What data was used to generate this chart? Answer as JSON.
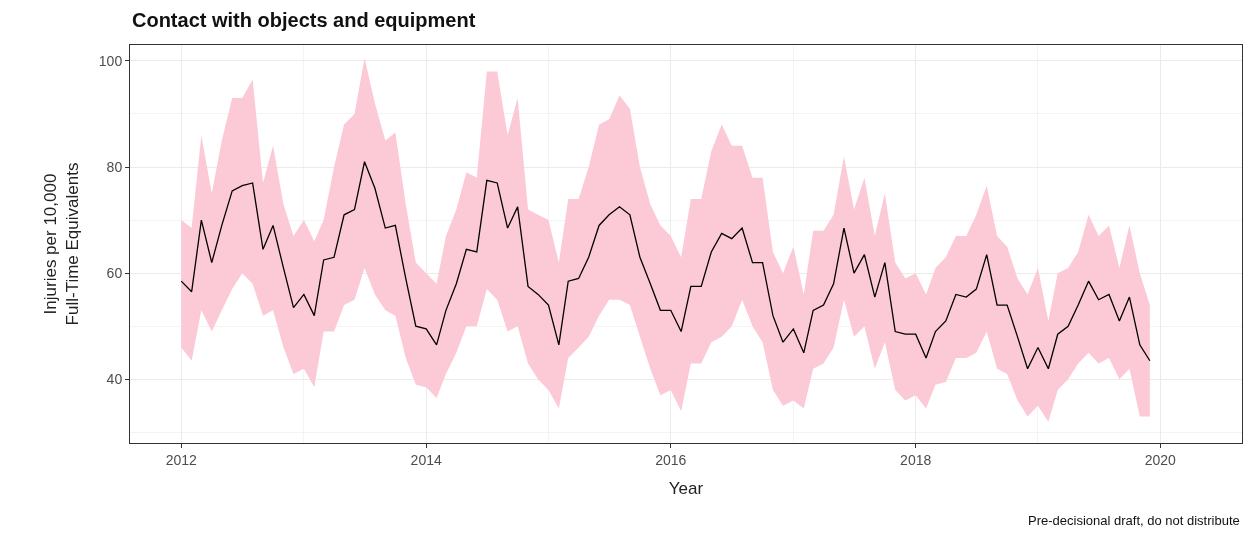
{
  "chart_data": {
    "type": "line",
    "title": "Contact with objects and equipment",
    "xlabel": "Year",
    "ylabel": "Injuries per 10,000\nFull-Time Equivalents",
    "annotations": [
      "Pre-decisional draft, do not distribute"
    ],
    "x": [
      "2012-01",
      "2012-02",
      "2012-03",
      "2012-04",
      "2012-05",
      "2012-06",
      "2012-07",
      "2012-08",
      "2012-09",
      "2012-10",
      "2012-11",
      "2012-12",
      "2013-01",
      "2013-02",
      "2013-03",
      "2013-04",
      "2013-05",
      "2013-06",
      "2013-07",
      "2013-08",
      "2013-09",
      "2013-10",
      "2013-11",
      "2013-12",
      "2014-01",
      "2014-02",
      "2014-03",
      "2014-04",
      "2014-05",
      "2014-06",
      "2014-07",
      "2014-08",
      "2014-09",
      "2014-10",
      "2014-11",
      "2014-12",
      "2015-01",
      "2015-02",
      "2015-03",
      "2015-04",
      "2015-05",
      "2015-06",
      "2015-07",
      "2015-08",
      "2015-09",
      "2015-10",
      "2015-11",
      "2015-12",
      "2016-01",
      "2016-02",
      "2016-03",
      "2016-04",
      "2016-05",
      "2016-06",
      "2016-07",
      "2016-08",
      "2016-09",
      "2016-10",
      "2016-11",
      "2016-12",
      "2017-01",
      "2017-02",
      "2017-03",
      "2017-04",
      "2017-05",
      "2017-06",
      "2017-07",
      "2017-08",
      "2017-09",
      "2017-10",
      "2017-11",
      "2017-12",
      "2018-01",
      "2018-02",
      "2018-03",
      "2018-04",
      "2018-05",
      "2018-06",
      "2018-07",
      "2018-08",
      "2018-09",
      "2018-10",
      "2018-11",
      "2018-12",
      "2019-01",
      "2019-02",
      "2019-03",
      "2019-04",
      "2019-05",
      "2019-06",
      "2019-07",
      "2019-08",
      "2019-09",
      "2019-10",
      "2019-11",
      "2019-12"
    ],
    "series": [
      {
        "color": "#000000",
        "values": [
          58.5,
          56.5,
          70,
          62,
          69,
          75.5,
          76.5,
          77,
          64.5,
          69,
          61,
          53.5,
          56,
          52,
          62.5,
          63,
          71,
          72,
          81,
          76,
          68.5,
          69,
          59,
          50,
          49.5,
          46.5,
          53,
          58,
          64.5,
          64,
          77.5,
          77,
          68.5,
          72.5,
          57.5,
          56,
          54,
          46.5,
          58.5,
          59,
          63,
          69,
          71,
          72.5,
          71,
          63,
          58,
          53,
          53,
          49,
          57.5,
          57.5,
          64,
          67.5,
          66.5,
          68.5,
          62,
          62,
          52,
          47,
          49.5,
          45,
          53,
          54,
          58,
          68.5,
          60,
          63.5,
          55.5,
          62,
          49,
          48.5,
          48.5,
          44,
          49,
          51,
          56,
          55.5,
          57,
          63.5,
          54,
          54,
          48,
          42,
          46,
          42,
          48.5,
          50,
          54,
          58.5,
          55,
          56,
          51,
          55.5,
          46.5,
          43.5
        ],
        "upper": [
          70,
          68.5,
          86,
          75,
          85,
          93,
          93,
          96.5,
          77,
          84,
          73,
          67,
          70,
          66,
          70,
          80,
          88,
          90,
          100.5,
          92,
          85,
          86.5,
          73,
          62,
          60,
          58,
          67,
          72,
          79,
          78,
          98,
          98,
          86,
          93,
          72,
          71,
          70,
          62,
          74,
          74,
          80,
          88,
          89,
          93.5,
          91,
          80,
          73,
          69,
          67,
          63,
          74,
          74,
          83,
          88,
          84,
          84,
          78,
          78,
          64,
          60,
          65,
          56,
          68,
          68,
          71,
          82,
          72,
          78,
          67,
          75,
          62,
          59,
          60,
          56,
          61,
          63,
          67,
          67,
          71,
          76.5,
          67,
          65,
          59,
          56,
          61,
          51,
          60,
          61,
          64,
          71,
          67,
          69,
          61,
          69,
          60,
          54
        ],
        "lower": [
          46,
          43.5,
          53,
          49,
          53,
          57,
          60,
          58,
          52,
          53,
          46,
          41,
          42,
          38.5,
          49,
          49,
          54,
          55,
          61,
          56,
          53,
          52,
          44,
          39,
          38.5,
          36.5,
          41,
          45,
          50,
          50,
          57,
          55,
          49,
          50,
          43,
          40,
          38,
          34.5,
          44,
          46,
          48,
          52,
          55,
          55,
          54,
          48,
          42,
          37,
          38,
          34,
          43,
          43,
          47,
          48,
          50,
          55,
          50,
          47,
          38,
          35,
          36,
          34.5,
          42,
          43,
          46,
          55,
          48,
          50,
          42,
          47,
          38,
          36,
          37,
          34.5,
          39,
          39.5,
          44,
          44,
          45,
          49,
          42,
          41,
          36,
          33,
          35,
          32,
          38,
          40,
          43,
          45,
          43,
          44,
          40,
          42,
          33,
          33
        ]
      }
    ],
    "xlim": [
      "2011-08",
      "2020-09"
    ],
    "xticks": [
      {
        "value": "2012-01",
        "label": "2012"
      },
      {
        "value": "2014-01",
        "label": "2014"
      },
      {
        "value": "2016-01",
        "label": "2016"
      },
      {
        "value": "2018-01",
        "label": "2018"
      },
      {
        "value": "2020-01",
        "label": "2020"
      }
    ],
    "ylim": [
      28,
      103
    ],
    "yticks": [
      40,
      60,
      80,
      100
    ],
    "grid": true,
    "line_style": "solid",
    "marker": "none"
  }
}
